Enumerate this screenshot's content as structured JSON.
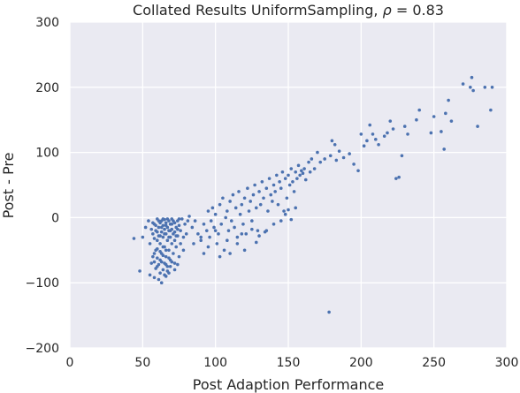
{
  "chart_data": {
    "type": "scatter",
    "title_prefix": "Collated Results UniformSampling, ",
    "title_rho": "ρ",
    "title_suffix": " = 0.83",
    "xlabel": "Post Adaption Performance",
    "ylabel": "Post - Pre",
    "xlim": [
      0,
      300
    ],
    "ylim": [
      -200,
      300
    ],
    "xticks": [
      0,
      50,
      100,
      150,
      200,
      250,
      300
    ],
    "yticks": [
      -200,
      -100,
      0,
      100,
      200,
      300
    ],
    "xtick_labels": [
      "0",
      "50",
      "100",
      "150",
      "200",
      "250",
      "300"
    ],
    "ytick_labels": [
      "−200",
      "−100",
      "0",
      "100",
      "200",
      "300"
    ],
    "grid": true,
    "background": "#eaeaf2",
    "point_color": "#4c72b0",
    "series": [
      {
        "points": [
          [
            44,
            -32
          ],
          [
            48,
            -82
          ],
          [
            50,
            -30
          ],
          [
            52,
            -15
          ],
          [
            54,
            -5
          ],
          [
            55,
            -40
          ],
          [
            55,
            -88
          ],
          [
            56,
            -70
          ],
          [
            57,
            -25
          ],
          [
            57,
            -60
          ],
          [
            58,
            -10
          ],
          [
            58,
            -92
          ],
          [
            59,
            -20
          ],
          [
            59,
            -50
          ],
          [
            60,
            -2
          ],
          [
            60,
            -35
          ],
          [
            60,
            -75
          ],
          [
            61,
            -15
          ],
          [
            61,
            -28
          ],
          [
            61,
            -95
          ],
          [
            62,
            -8
          ],
          [
            62,
            -40
          ],
          [
            62,
            -65
          ],
          [
            63,
            -22
          ],
          [
            63,
            -5
          ],
          [
            63,
            -55
          ],
          [
            63,
            -100
          ],
          [
            64,
            -12
          ],
          [
            64,
            -30
          ],
          [
            64,
            -80
          ],
          [
            65,
            -3
          ],
          [
            65,
            -18
          ],
          [
            65,
            -45
          ],
          [
            65,
            -70
          ],
          [
            66,
            -8
          ],
          [
            66,
            -25
          ],
          [
            66,
            -60
          ],
          [
            66,
            -90
          ],
          [
            67,
            -15
          ],
          [
            67,
            -35
          ],
          [
            67,
            -75
          ],
          [
            68,
            -5
          ],
          [
            68,
            -20
          ],
          [
            68,
            -50
          ],
          [
            68,
            -85
          ],
          [
            69,
            -10
          ],
          [
            69,
            -30
          ],
          [
            69,
            -65
          ],
          [
            70,
            -18
          ],
          [
            70,
            -40
          ],
          [
            70,
            -2
          ],
          [
            71,
            -25
          ],
          [
            71,
            -55
          ],
          [
            72,
            -8
          ],
          [
            72,
            -35
          ],
          [
            72,
            -70
          ],
          [
            73,
            -15
          ],
          [
            73,
            -45
          ],
          [
            74,
            -5
          ],
          [
            74,
            -28
          ],
          [
            75,
            -12
          ],
          [
            75,
            -60
          ],
          [
            76,
            -20
          ],
          [
            76,
            -40
          ],
          [
            77,
            -2
          ],
          [
            78,
            -30
          ],
          [
            78,
            -50
          ],
          [
            79,
            -10
          ],
          [
            80,
            -25
          ],
          [
            81,
            -5
          ],
          [
            56,
            -18
          ],
          [
            57,
            -8
          ],
          [
            58,
            -32
          ],
          [
            59,
            -12
          ],
          [
            60,
            -22
          ],
          [
            61,
            -5
          ],
          [
            62,
            -28
          ],
          [
            63,
            -15
          ],
          [
            64,
            -2
          ],
          [
            65,
            -25
          ],
          [
            66,
            -12
          ],
          [
            67,
            -2
          ],
          [
            68,
            -30
          ],
          [
            69,
            -20
          ],
          [
            70,
            -10
          ],
          [
            71,
            -5
          ],
          [
            72,
            -22
          ],
          [
            73,
            -28
          ],
          [
            74,
            -18
          ],
          [
            75,
            -2
          ],
          [
            58,
            -68
          ],
          [
            59,
            -78
          ],
          [
            60,
            -62
          ],
          [
            61,
            -72
          ],
          [
            62,
            -85
          ],
          [
            63,
            -68
          ],
          [
            64,
            -58
          ],
          [
            65,
            -88
          ],
          [
            66,
            -72
          ],
          [
            67,
            -82
          ],
          [
            68,
            -62
          ],
          [
            69,
            -75
          ],
          [
            70,
            -68
          ],
          [
            72,
            -80
          ],
          [
            74,
            -72
          ],
          [
            58,
            -55
          ],
          [
            60,
            -48
          ],
          [
            62,
            -52
          ],
          [
            64,
            -45
          ],
          [
            66,
            -50
          ],
          [
            82,
            2
          ],
          [
            84,
            -15
          ],
          [
            85,
            -40
          ],
          [
            86,
            -5
          ],
          [
            88,
            -25
          ],
          [
            90,
            -35
          ],
          [
            92,
            -10
          ],
          [
            94,
            -20
          ],
          [
            95,
            10
          ],
          [
            96,
            -30
          ],
          [
            97,
            -5
          ],
          [
            98,
            15
          ],
          [
            99,
            -15
          ],
          [
            100,
            5
          ],
          [
            101,
            -40
          ],
          [
            102,
            -25
          ],
          [
            103,
            20
          ],
          [
            104,
            -10
          ],
          [
            105,
            30
          ],
          [
            106,
            -50
          ],
          [
            107,
            0
          ],
          [
            108,
            10
          ],
          [
            109,
            -20
          ],
          [
            110,
            25
          ],
          [
            111,
            -5
          ],
          [
            112,
            35
          ],
          [
            113,
            -15
          ],
          [
            114,
            15
          ],
          [
            115,
            -30
          ],
          [
            116,
            40
          ],
          [
            117,
            5
          ],
          [
            118,
            20
          ],
          [
            119,
            -10
          ],
          [
            120,
            30
          ],
          [
            121,
            -25
          ],
          [
            122,
            45
          ],
          [
            123,
            10
          ],
          [
            124,
            25
          ],
          [
            125,
            -5
          ],
          [
            126,
            35
          ],
          [
            127,
            50
          ],
          [
            128,
            15
          ],
          [
            129,
            -20
          ],
          [
            130,
            40
          ],
          [
            131,
            20
          ],
          [
            132,
            55
          ],
          [
            133,
            30
          ],
          [
            134,
            -22
          ],
          [
            135,
            45
          ],
          [
            136,
            10
          ],
          [
            137,
            60
          ],
          [
            138,
            35
          ],
          [
            139,
            25
          ],
          [
            140,
            50
          ],
          [
            141,
            40
          ],
          [
            142,
            65
          ],
          [
            143,
            20
          ],
          [
            144,
            55
          ],
          [
            145,
            45
          ],
          [
            146,
            70
          ],
          [
            147,
            10
          ],
          [
            148,
            60
          ],
          [
            149,
            30
          ],
          [
            150,
            65
          ],
          [
            151,
            50
          ],
          [
            152,
            75
          ],
          [
            153,
            55
          ],
          [
            154,
            40
          ],
          [
            155,
            70
          ],
          [
            156,
            60
          ],
          [
            157,
            80
          ],
          [
            158,
            65
          ],
          [
            159,
            72
          ],
          [
            160,
            68
          ],
          [
            161,
            75
          ],
          [
            162,
            58
          ],
          [
            164,
            85
          ],
          [
            165,
            70
          ],
          [
            166,
            90
          ],
          [
            168,
            75
          ],
          [
            170,
            100
          ],
          [
            172,
            85
          ],
          [
            175,
            90
          ],
          [
            178,
            -145
          ],
          [
            179,
            95
          ],
          [
            180,
            118
          ],
          [
            182,
            112
          ],
          [
            183,
            88
          ],
          [
            185,
            102
          ],
          [
            188,
            92
          ],
          [
            192,
            98
          ],
          [
            195,
            82
          ],
          [
            198,
            72
          ],
          [
            200,
            128
          ],
          [
            202,
            110
          ],
          [
            204,
            118
          ],
          [
            206,
            142
          ],
          [
            208,
            128
          ],
          [
            210,
            120
          ],
          [
            212,
            112
          ],
          [
            216,
            125
          ],
          [
            218,
            130
          ],
          [
            220,
            148
          ],
          [
            222,
            136
          ],
          [
            224,
            60
          ],
          [
            226,
            62
          ],
          [
            228,
            95
          ],
          [
            230,
            140
          ],
          [
            232,
            128
          ],
          [
            238,
            150
          ],
          [
            240,
            165
          ],
          [
            248,
            130
          ],
          [
            250,
            155
          ],
          [
            255,
            132
          ],
          [
            257,
            105
          ],
          [
            258,
            160
          ],
          [
            260,
            180
          ],
          [
            262,
            148
          ],
          [
            270,
            205
          ],
          [
            275,
            200
          ],
          [
            276,
            215
          ],
          [
            277,
            195
          ],
          [
            280,
            140
          ],
          [
            285,
            200
          ],
          [
            289,
            165
          ],
          [
            290,
            200
          ],
          [
            90,
            -30
          ],
          [
            92,
            -55
          ],
          [
            95,
            -45
          ],
          [
            100,
            -20
          ],
          [
            103,
            -60
          ],
          [
            108,
            -35
          ],
          [
            110,
            -55
          ],
          [
            115,
            -40
          ],
          [
            118,
            -25
          ],
          [
            120,
            -50
          ],
          [
            125,
            -18
          ],
          [
            128,
            -38
          ],
          [
            130,
            -28
          ],
          [
            135,
            -20
          ],
          [
            140,
            -10
          ],
          [
            145,
            -5
          ],
          [
            148,
            5
          ],
          [
            150,
            12
          ],
          [
            152,
            -3
          ],
          [
            155,
            15
          ]
        ]
      }
    ]
  }
}
